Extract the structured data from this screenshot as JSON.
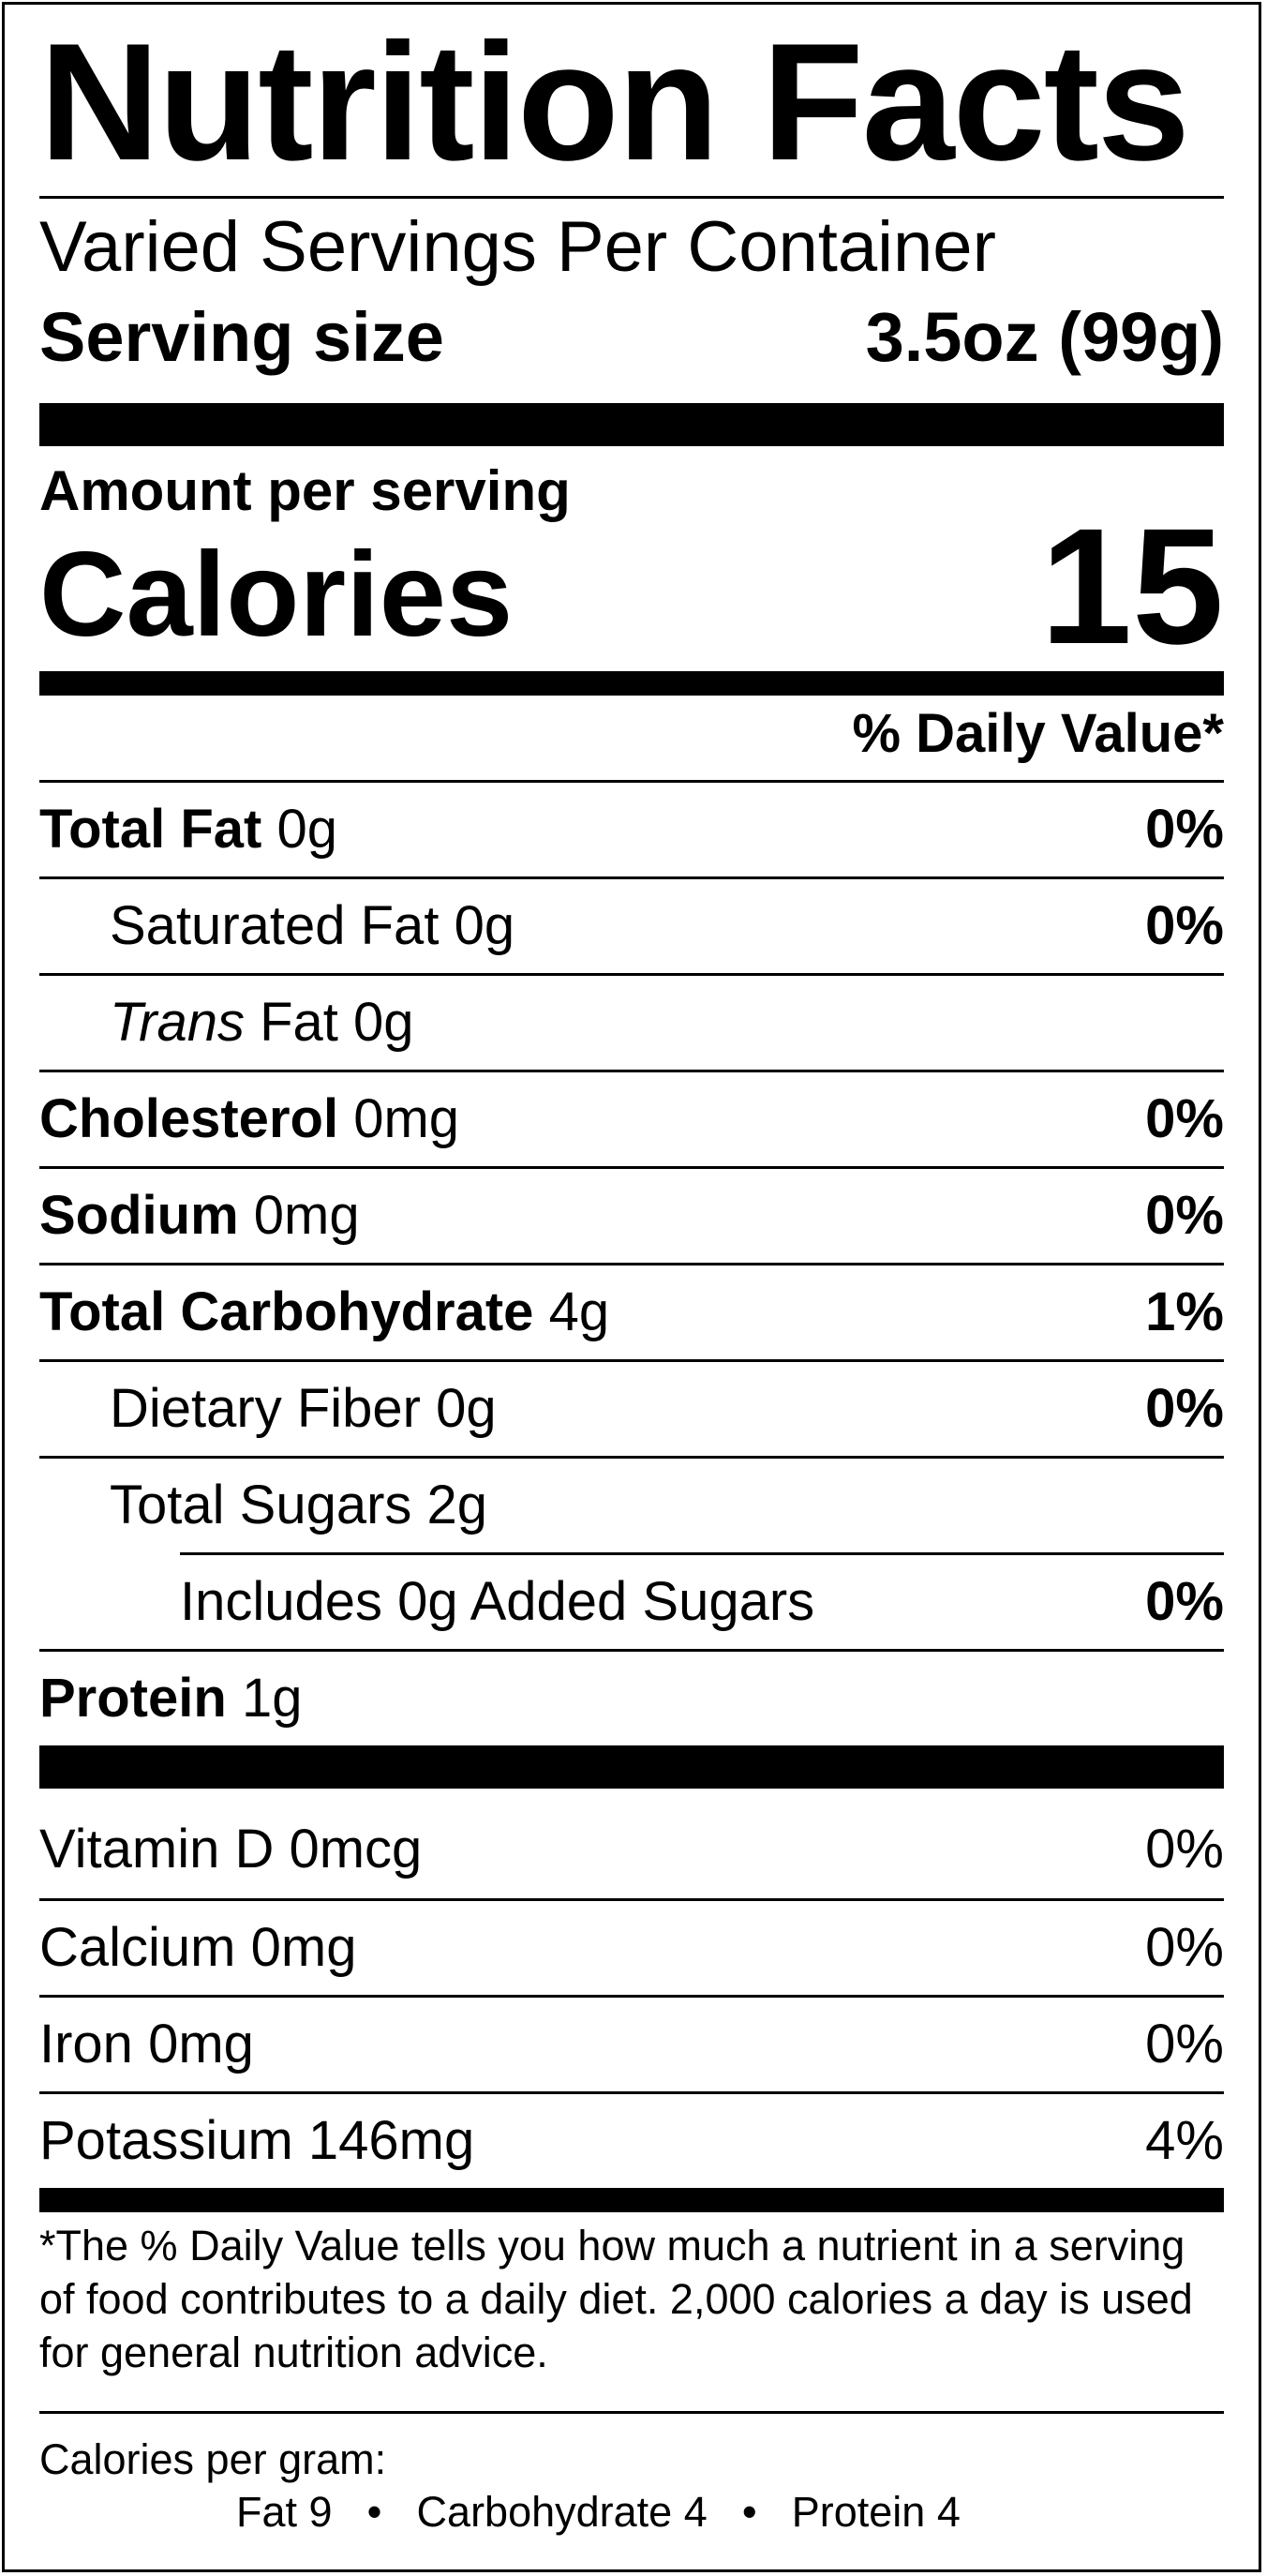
{
  "title": "Nutrition Facts",
  "servings_per_container": "Varied Servings Per Container",
  "serving_size": {
    "label": "Serving size",
    "value": "3.5oz (99g)"
  },
  "amount_per_serving": "Amount per serving",
  "calories": {
    "label": "Calories",
    "value": "15"
  },
  "daily_value_header": "% Daily Value*",
  "nutrients": [
    {
      "name": "Total Fat",
      "amount": "0g",
      "dv": "0%"
    },
    {
      "name": "Saturated Fat",
      "amount": "0g",
      "dv": "0%"
    },
    {
      "name_italic": "Trans",
      "name": "Fat",
      "amount": "0g",
      "dv": ""
    },
    {
      "name": "Cholesterol",
      "amount": "0mg",
      "dv": "0%"
    },
    {
      "name": "Sodium",
      "amount": "0mg",
      "dv": "0%"
    },
    {
      "name": "Total Carbohydrate",
      "amount": "4g",
      "dv": "1%"
    },
    {
      "name": "Dietary Fiber",
      "amount": "0g",
      "dv": "0%"
    },
    {
      "name": "Total Sugars",
      "amount": "2g",
      "dv": ""
    },
    {
      "name": "Includes 0g Added Sugars",
      "amount": "",
      "dv": "0%"
    },
    {
      "name": "Protein",
      "amount": "1g",
      "dv": ""
    }
  ],
  "vitamins": [
    {
      "name": "Vitamin D",
      "amount": "0mcg",
      "dv": "0%"
    },
    {
      "name": "Calcium",
      "amount": "0mg",
      "dv": "0%"
    },
    {
      "name": "Iron",
      "amount": "0mg",
      "dv": "0%"
    },
    {
      "name": "Potassium",
      "amount": "146mg",
      "dv": "4%"
    }
  ],
  "footnote": "*The % Daily Value tells you how much a nutrient in a serving of food contributes to a daily diet. 2,000 calories a day is used for general nutrition advice.",
  "calories_per_gram": {
    "label": "Calories per gram:",
    "fat": "Fat 9",
    "carbohydrate": "Carbohydrate 4",
    "protein": "Protein 4",
    "separator": "•"
  }
}
